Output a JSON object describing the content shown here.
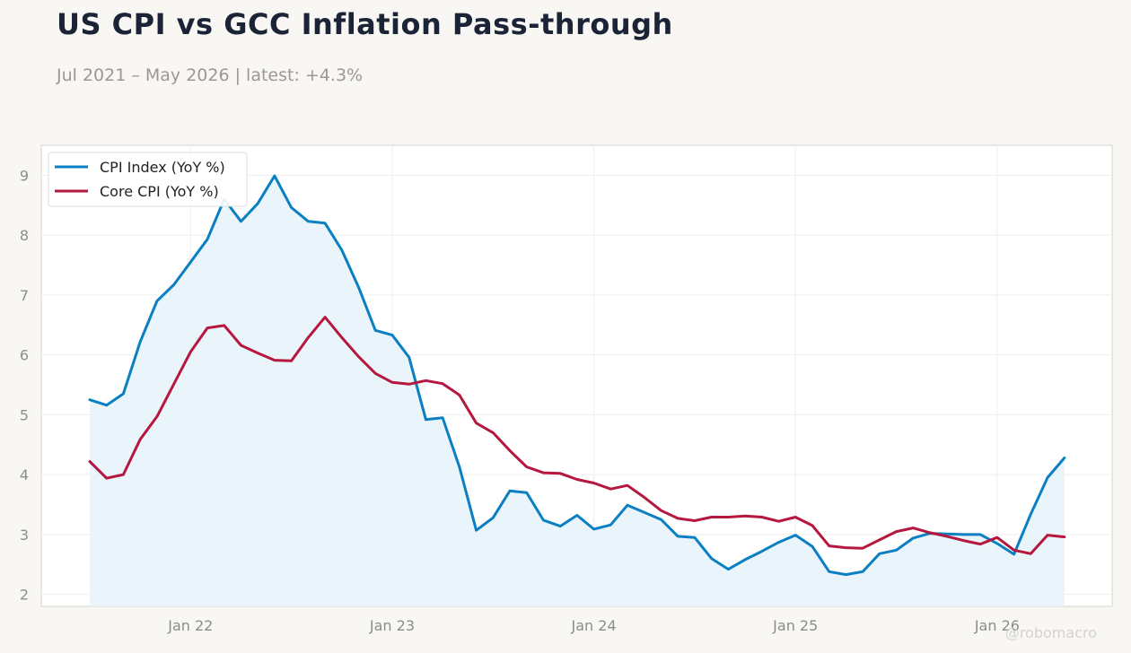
{
  "title": "US CPI vs GCC Inflation Pass-through",
  "subtitle": "Jul 2021 – May 2026 | latest: +4.3%",
  "watermark": "@robomacro",
  "colors": {
    "cpi": "#0a80c2",
    "core": "#b5173f",
    "cpi_fill": "#e6f2fa",
    "grid": "#eeeeee",
    "tick_text": "#8c8c8c",
    "axes_edge": "#d6d3cc"
  },
  "chart_data": {
    "type": "line",
    "x": [
      "2021-07",
      "2021-08",
      "2021-09",
      "2021-10",
      "2021-11",
      "2021-12",
      "2022-01",
      "2022-02",
      "2022-03",
      "2022-04",
      "2022-05",
      "2022-06",
      "2022-07",
      "2022-08",
      "2022-09",
      "2022-10",
      "2022-11",
      "2022-12",
      "2023-01",
      "2023-02",
      "2023-03",
      "2023-04",
      "2023-05",
      "2023-06",
      "2023-07",
      "2023-08",
      "2023-09",
      "2023-10",
      "2023-11",
      "2023-12",
      "2024-01",
      "2024-02",
      "2024-03",
      "2024-04",
      "2024-05",
      "2024-06",
      "2024-07",
      "2024-08",
      "2024-09",
      "2024-10",
      "2024-11",
      "2024-12",
      "2025-01",
      "2025-02",
      "2025-03",
      "2025-04",
      "2025-05",
      "2025-06",
      "2025-07",
      "2025-08",
      "2025-09",
      "2025-10",
      "2025-11",
      "2025-12",
      "2026-01",
      "2026-02",
      "2026-03",
      "2026-04",
      "2026-05"
    ],
    "series": [
      {
        "name": "CPI Index (YoY %)",
        "values": [
          5.25,
          5.16,
          5.35,
          6.22,
          6.9,
          7.17,
          7.55,
          7.93,
          8.6,
          8.23,
          8.53,
          8.99,
          8.46,
          8.23,
          8.2,
          7.75,
          7.13,
          6.41,
          6.33,
          5.96,
          4.92,
          4.95,
          4.13,
          3.07,
          3.28,
          3.73,
          3.7,
          3.24,
          3.14,
          3.32,
          3.09,
          3.16,
          3.49,
          3.37,
          3.25,
          2.97,
          2.95,
          2.6,
          2.42,
          2.58,
          2.72,
          2.87,
          2.99,
          2.8,
          2.38,
          2.33,
          2.38,
          2.68,
          2.74,
          2.94,
          3.02,
          3.01,
          3.0,
          3.0,
          2.85,
          2.67,
          3.34,
          3.95,
          4.28
        ]
      },
      {
        "name": "Core CPI (YoY %)",
        "values": [
          4.22,
          3.94,
          4.0,
          4.59,
          4.97,
          5.51,
          6.05,
          6.45,
          6.49,
          6.16,
          6.03,
          5.91,
          5.9,
          6.29,
          6.63,
          6.29,
          5.97,
          5.69,
          5.54,
          5.51,
          5.57,
          5.52,
          5.33,
          4.86,
          4.7,
          4.4,
          4.13,
          4.03,
          4.02,
          3.92,
          3.86,
          3.76,
          3.82,
          3.62,
          3.4,
          3.27,
          3.23,
          3.29,
          3.29,
          3.31,
          3.29,
          3.22,
          3.29,
          3.15,
          2.81,
          2.78,
          2.77,
          2.91,
          3.05,
          3.11,
          3.03,
          2.97,
          2.9,
          2.84,
          2.95,
          2.74,
          2.68,
          2.99,
          2.96
        ]
      }
    ],
    "x_ticks": [
      {
        "date": "2022-01",
        "label": "Jan 22"
      },
      {
        "date": "2023-01",
        "label": "Jan 23"
      },
      {
        "date": "2024-01",
        "label": "Jan 24"
      },
      {
        "date": "2025-01",
        "label": "Jan 25"
      },
      {
        "date": "2026-01",
        "label": "Jan 26"
      }
    ],
    "y_ticks": [
      2,
      3,
      4,
      5,
      6,
      7,
      8,
      9
    ],
    "ylim": [
      1.8,
      9.5
    ],
    "grid": true,
    "legend_position": "top-left",
    "fill_under_first_series": true
  }
}
